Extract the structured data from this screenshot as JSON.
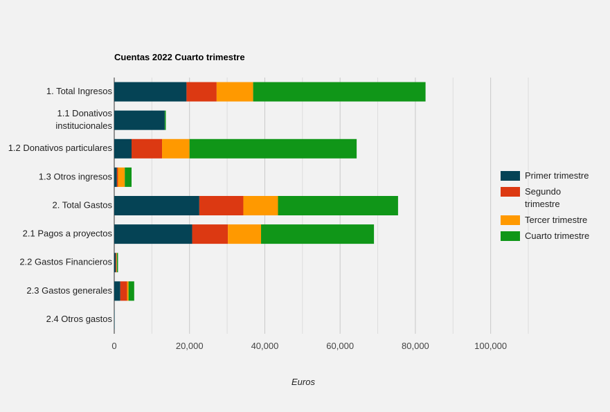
{
  "chart_data": {
    "type": "bar",
    "orientation": "horizontal",
    "stacked": true,
    "title": "Cuentas 2022 Cuarto trimestre",
    "xlabel": "Euros",
    "ylabel": "",
    "xlim": [
      0,
      110000
    ],
    "x_ticks": [
      0,
      20000,
      40000,
      60000,
      80000,
      100000
    ],
    "x_tick_labels": [
      "0",
      "20,000",
      "40,000",
      "60,000",
      "80,000",
      "100,000"
    ],
    "grid": true,
    "legend_position": "right",
    "categories": [
      [
        "1. Total Ingresos"
      ],
      [
        "1.1 Donativos",
        "institucionales"
      ],
      [
        "1.2 Donativos particulares"
      ],
      [
        "1.3 Otros ingresos"
      ],
      [
        "2. Total Gastos"
      ],
      [
        "2.1 Pagos a proyectos"
      ],
      [
        "2.2 Gastos Financieros"
      ],
      [
        "2.3 Gastos generales"
      ],
      [
        "2.4 Otros gastos"
      ]
    ],
    "series": [
      {
        "name": [
          "Primer trimestre"
        ],
        "color": "#054355",
        "values": [
          19200,
          13400,
          4600,
          700,
          22600,
          20700,
          400,
          1600,
          100
        ]
      },
      {
        "name": [
          "Segundo",
          "trimestre"
        ],
        "color": "#dc3912",
        "values": [
          8000,
          0,
          8100,
          300,
          11700,
          9500,
          200,
          1800,
          0
        ]
      },
      {
        "name": [
          "Tercer trimestre"
        ],
        "color": "#ff9900",
        "values": [
          9700,
          0,
          7300,
          1800,
          9200,
          8800,
          100,
          400,
          0
        ]
      },
      {
        "name": [
          "Cuarto trimestre"
        ],
        "color": "#109618",
        "values": [
          45800,
          300,
          44400,
          1800,
          31900,
          30000,
          300,
          1500,
          0
        ]
      }
    ]
  }
}
